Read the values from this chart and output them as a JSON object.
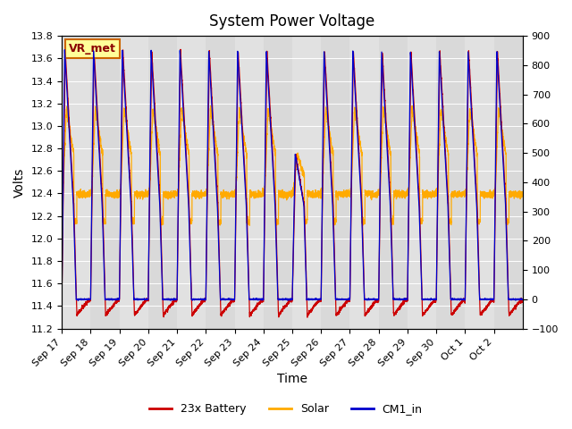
{
  "title": "System Power Voltage",
  "ylabel_left": "Volts",
  "xlabel": "Time",
  "ylim_left": [
    11.2,
    13.8
  ],
  "ylim_right": [
    -100,
    900
  ],
  "yticks_left": [
    11.2,
    11.4,
    11.6,
    11.8,
    12.0,
    12.2,
    12.4,
    12.6,
    12.8,
    13.0,
    13.2,
    13.4,
    13.6,
    13.8
  ],
  "yticks_right": [
    -100,
    0,
    100,
    200,
    300,
    400,
    500,
    600,
    700,
    800,
    900
  ],
  "xtick_labels": [
    "Sep 17",
    "Sep 18",
    "Sep 19",
    "Sep 20",
    "Sep 21",
    "Sep 22",
    "Sep 23",
    "Sep 24",
    "Sep 25",
    "Sep 26",
    "Sep 27",
    "Sep 28",
    "Sep 29",
    "Sep 30",
    "Oct 1",
    "Oct 2"
  ],
  "xtick_positions": [
    0,
    1,
    2,
    3,
    4,
    5,
    6,
    7,
    8,
    9,
    10,
    11,
    12,
    13,
    14,
    15
  ],
  "colors": {
    "battery": "#cc0000",
    "solar": "#ffaa00",
    "cm1": "#0000cc",
    "background": "#d8d8d8",
    "vr_met_bg": "#ffff99",
    "vr_met_border": "#cc6600",
    "band_light": "#e8e8e8",
    "band_dark": "#d0d0d0"
  },
  "legend_labels": [
    "23x Battery",
    "Solar",
    "CM1_in"
  ],
  "vr_met_label": "VR_met",
  "num_days": 16,
  "battery_base": 11.45,
  "battery_peak": 13.67,
  "battery_trough": 11.32,
  "solar_base": 12.4,
  "solar_peak": 13.15,
  "cm1_base": 11.46,
  "cm1_peak": 13.67,
  "title_fontsize": 12,
  "axis_label_fontsize": 10,
  "tick_fontsize": 8,
  "legend_fontsize": 9
}
